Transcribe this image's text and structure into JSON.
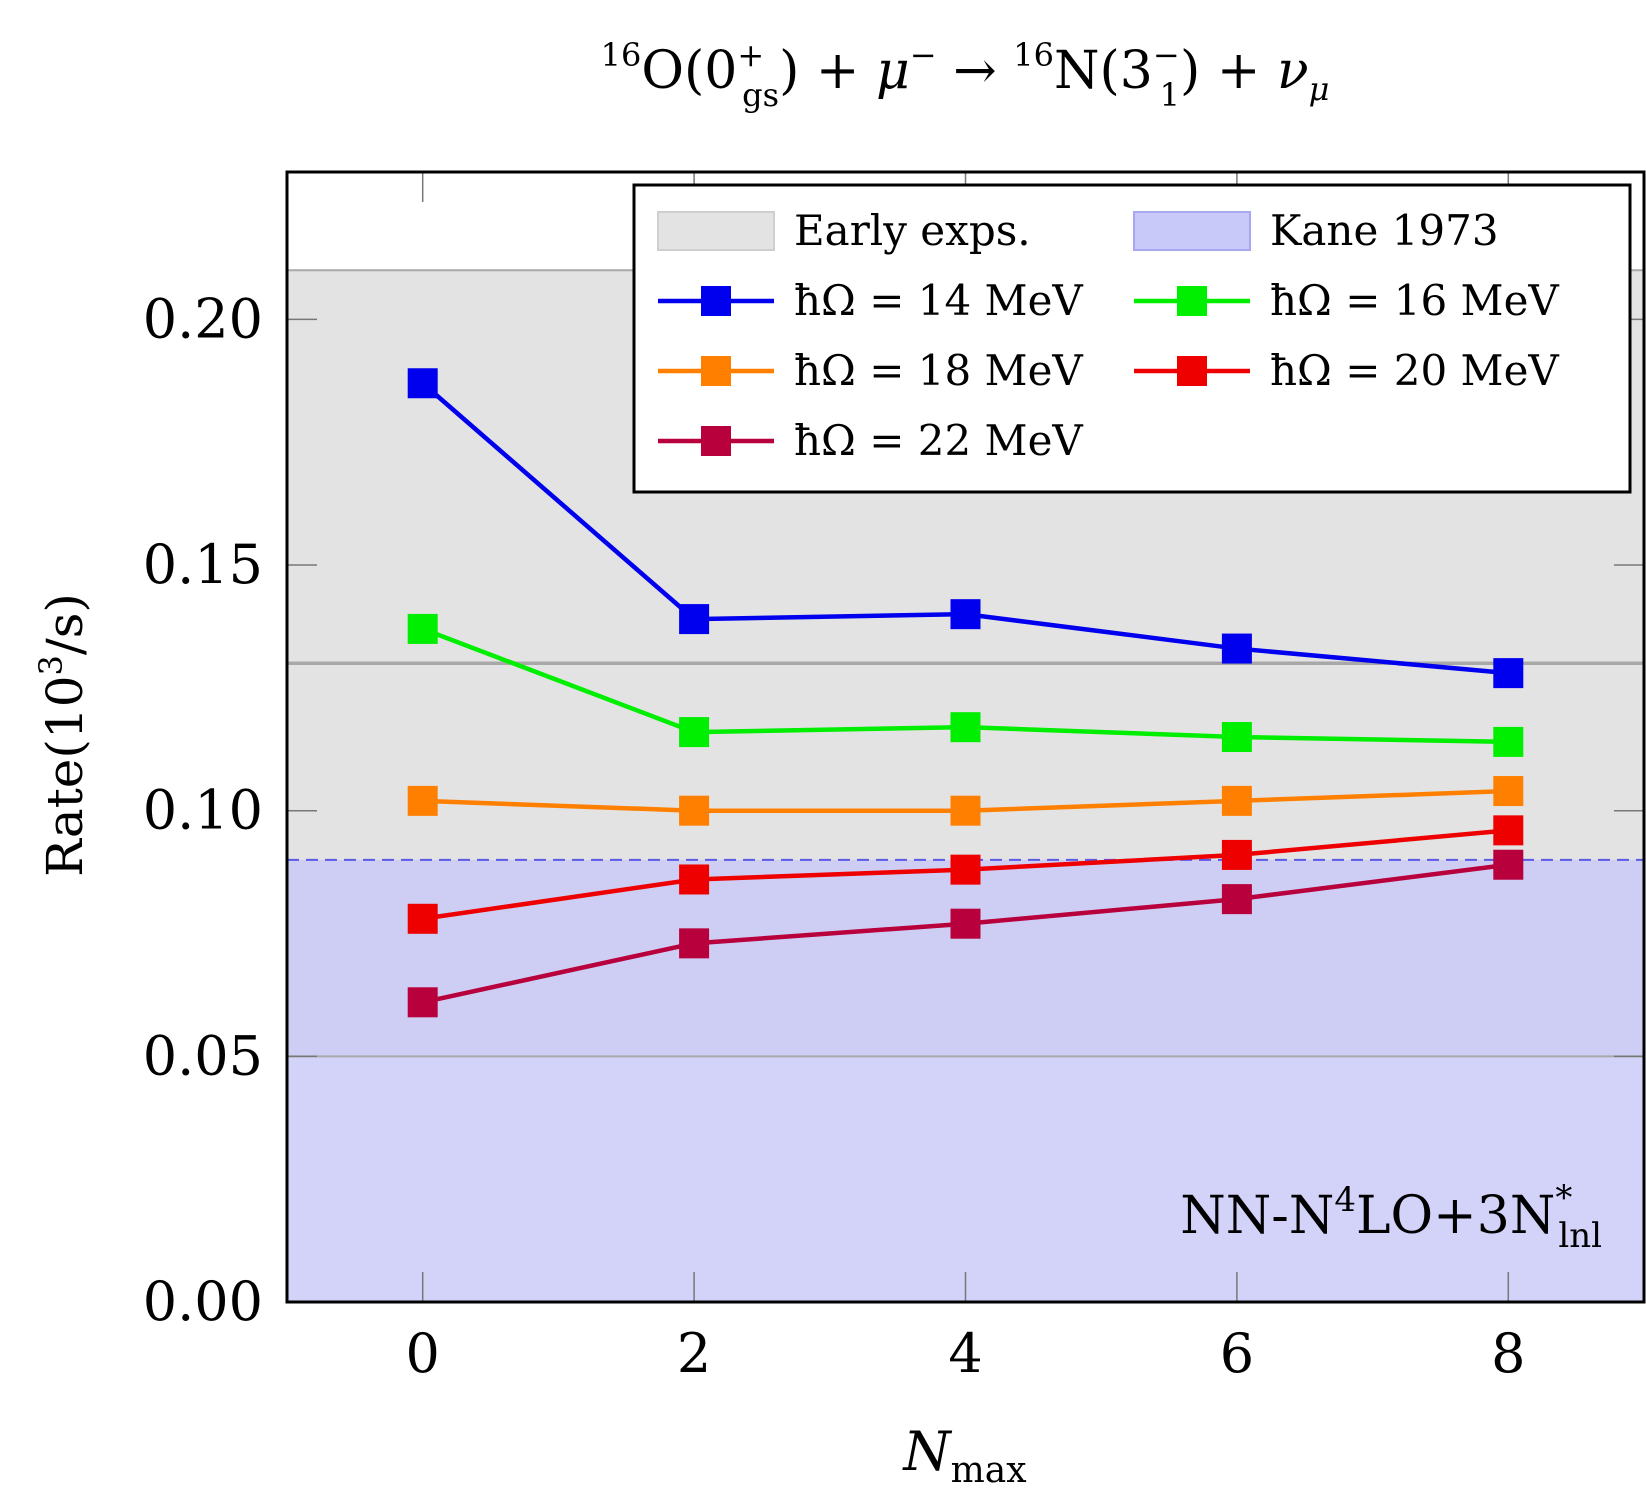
{
  "chart_data": {
    "type": "line",
    "title": {
      "lhs_mass": "16",
      "lhs_nucleus": "O",
      "lhs_state": "0",
      "lhs_parity": "+",
      "lhs_sub": "gs",
      "plus": "+",
      "muon": "μ",
      "muon_sup": "−",
      "arrow": "→",
      "rhs_mass": "16",
      "rhs_nucleus": "N",
      "rhs_state": "3",
      "rhs_parity": "−",
      "rhs_sub": "1",
      "nu": "ν",
      "nu_sub": "μ"
    },
    "xlabel": {
      "main": "N",
      "sub": "max"
    },
    "ylabel": {
      "before": "Rate(10",
      "sup": "3",
      "after": "/s)"
    },
    "x": [
      0,
      2,
      4,
      6,
      8
    ],
    "xlim": [
      -1,
      9
    ],
    "ylim": [
      0,
      0.23
    ],
    "x_ticks": [
      "0",
      "2",
      "4",
      "6",
      "8"
    ],
    "y_ticks": [
      {
        "value": 0.0,
        "label": "0.00"
      },
      {
        "value": 0.05,
        "label": "0.05"
      },
      {
        "value": 0.1,
        "label": "0.10"
      },
      {
        "value": 0.15,
        "label": "0.15"
      },
      {
        "value": 0.2,
        "label": "0.20"
      }
    ],
    "bands": [
      {
        "name": "Early exps.",
        "low": 0.05,
        "high": 0.21,
        "center": 0.13,
        "color": "#e3e3e3",
        "edge": "#a8a8a8"
      },
      {
        "name": "Kane 1973",
        "low": 0.0,
        "high": 0.09,
        "color": "#c8c8f9",
        "edge": "#5a5ae6"
      }
    ],
    "series": [
      {
        "name": "ħΩ = 14 MeV",
        "color": "#0000ee",
        "values": [
          0.187,
          0.139,
          0.14,
          0.133,
          0.128
        ]
      },
      {
        "name": "ħΩ = 16 MeV",
        "color": "#00ee00",
        "values": [
          0.137,
          0.116,
          0.117,
          0.115,
          0.114
        ]
      },
      {
        "name": "ħΩ = 18 MeV",
        "color": "#ff8000",
        "values": [
          0.102,
          0.1,
          0.1,
          0.102,
          0.104
        ]
      },
      {
        "name": "ħΩ = 20 MeV",
        "color": "#ee0000",
        "values": [
          0.078,
          0.086,
          0.088,
          0.091,
          0.096
        ]
      },
      {
        "name": "ħΩ = 22 MeV",
        "color": "#b8003c",
        "values": [
          0.061,
          0.073,
          0.077,
          0.082,
          0.089
        ]
      }
    ],
    "legend": {
      "placement": "top-right",
      "entries": [
        {
          "label": "Early exps.",
          "kind": "band",
          "ref": 0
        },
        {
          "label": "Kane 1973",
          "kind": "band",
          "ref": 1
        },
        {
          "label": "ħΩ = 14 MeV",
          "kind": "line",
          "ref": 0
        },
        {
          "label": "ħΩ = 16 MeV",
          "kind": "line",
          "ref": 1
        },
        {
          "label": "ħΩ = 18 MeV",
          "kind": "line",
          "ref": 2
        },
        {
          "label": "ħΩ = 20 MeV",
          "kind": "line",
          "ref": 3
        },
        {
          "label": "ħΩ = 22 MeV",
          "kind": "line",
          "ref": 4
        }
      ]
    },
    "annotation": {
      "a": "NN-N",
      "a_sup": "4",
      "b": "LO+3N",
      "b_sup": "*",
      "b_sub": "lnl"
    },
    "grid": false
  }
}
